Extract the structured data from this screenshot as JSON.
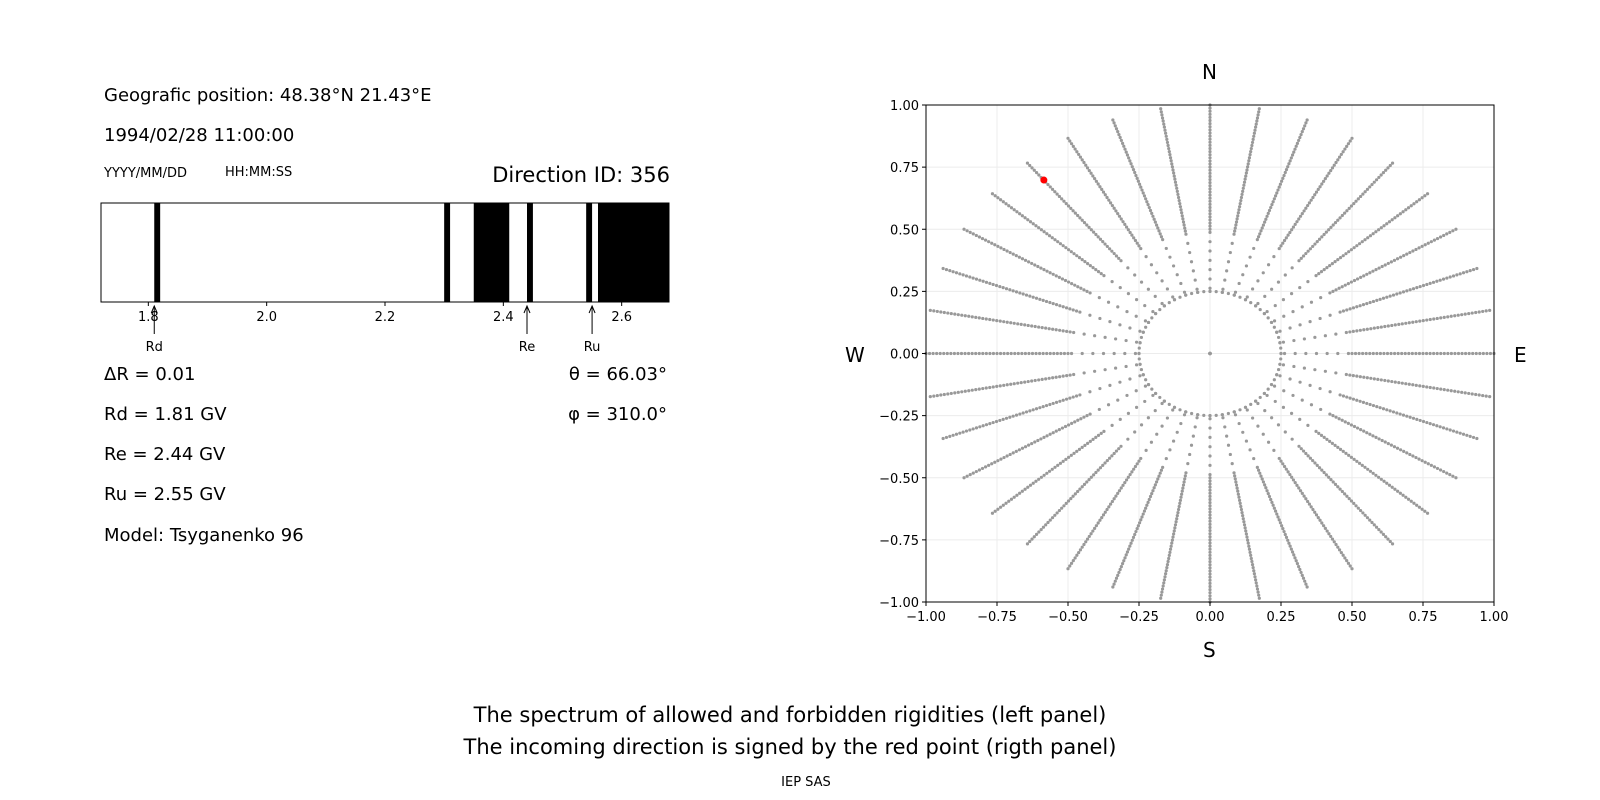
{
  "left_panel": {
    "position": "Geografic position: 48.38°N 21.43°E",
    "datetime": "1994/02/28 11:00:00",
    "date_format": "YYYY/MM/DD",
    "time_format": "HH:MM:SS",
    "direction": "Direction ID: 356",
    "delta_r": "ΔR = 0.01",
    "rd": "Rd = 1.81 GV",
    "re": "Re = 2.44 GV",
    "ru": "Ru = 2.55 GV",
    "model": "Model: Tsyganenko 96",
    "theta": "θ = 66.03°",
    "phi": "φ = 310.0°"
  },
  "compass": {
    "n": "N",
    "s": "S",
    "w": "W",
    "e": "E"
  },
  "caption": {
    "line1": "The spectrum of allowed and forbidden rigidities (left panel)",
    "line2": "The incoming direction is signed by the red point (rigth panel)",
    "credit": "IEP SAS"
  },
  "chart_data": [
    {
      "type": "band",
      "xlim": [
        1.72,
        2.68
      ],
      "xticks": [
        1.8,
        2.0,
        2.2,
        2.4,
        2.6
      ],
      "xtick_labels": [
        "1.8",
        "2.0",
        "2.2",
        "2.4",
        "2.6"
      ],
      "forbidden_bands": [
        [
          1.81,
          1.82
        ],
        [
          2.3,
          2.31
        ],
        [
          2.35,
          2.41
        ],
        [
          2.44,
          2.45
        ],
        [
          2.54,
          2.55
        ],
        [
          2.56,
          2.68
        ]
      ],
      "markers": [
        {
          "label": "Rd",
          "x": 1.81
        },
        {
          "label": "Re",
          "x": 2.44
        },
        {
          "label": "Ru",
          "x": 2.55
        }
      ],
      "colors": {
        "forbidden": "#000000",
        "allowed": "#ffffff"
      }
    },
    {
      "type": "scatter",
      "xlim": [
        -1,
        1
      ],
      "ylim": [
        -1,
        1
      ],
      "xticks": [
        -1.0,
        -0.75,
        -0.5,
        -0.25,
        0.0,
        0.25,
        0.5,
        0.75,
        1.0
      ],
      "xtick_labels": [
        "−1.00",
        "−0.75",
        "−0.50",
        "−0.25",
        "0.00",
        "0.25",
        "0.50",
        "0.75",
        "1.00"
      ],
      "yticks": [
        1.0,
        0.75,
        0.5,
        0.25,
        0.0,
        -0.25,
        -0.5,
        -0.75,
        -1.0
      ],
      "ytick_labels": [
        "1.00",
        "0.75",
        "0.50",
        "0.25",
        "0.00",
        "−0.25",
        "−0.50",
        "−0.75",
        "−1.00"
      ],
      "grid": true,
      "grid_pattern": {
        "azimuth_step_deg": 10,
        "radius_step": 0.0125,
        "max_radius": 1.0,
        "inner_ring_radius": 0.25,
        "inner_ring_step_deg": 5
      },
      "highlight_point": {
        "x": -0.585,
        "y": 0.698
      },
      "colors": {
        "points": "#999999",
        "highlight": "#ff0000"
      }
    }
  ]
}
